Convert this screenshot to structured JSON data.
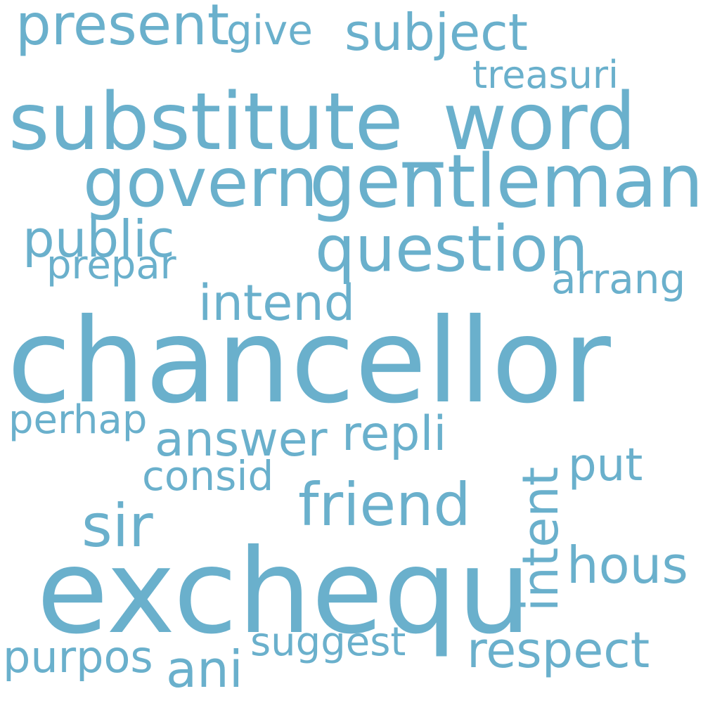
{
  "word_color": "#6ab0cc",
  "background_color": "#ffffff",
  "words": {
    "chancellor": "chancellor",
    "exchequ": "exchequ",
    "substitute_word": "substitute_word",
    "gentleman": "gentleman",
    "govern": "govern",
    "question": "question",
    "friend": "friend",
    "present": "present",
    "subject": "subject",
    "give": "give",
    "treasuri": "treasuri",
    "public": "public",
    "prepar": "prepar",
    "arrang": "arrang",
    "intend": "intend",
    "perhap": "perhap",
    "answer": "answer",
    "repli": "repli",
    "intent": "intent",
    "put": "put",
    "consid": "consid",
    "sir": "sir",
    "hous": "hous",
    "respect": "respect",
    "suggest": "suggest",
    "purpos": "purpos",
    "ani": "ani"
  }
}
